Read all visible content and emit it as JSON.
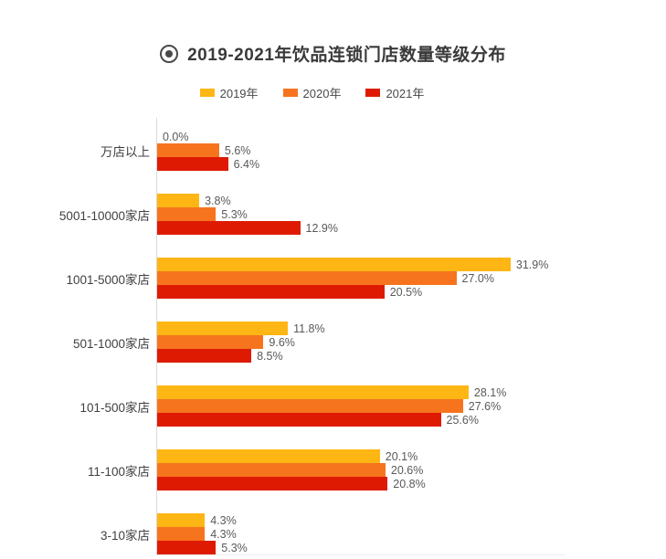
{
  "title": {
    "text": "2019-2021年饮品连锁门店数量等级分布"
  },
  "chart_data": {
    "type": "bar",
    "orientation": "horizontal",
    "title": "2019-2021年饮品连锁门店数量等级分布",
    "categories": [
      "万店以上",
      "5001-10000家店",
      "1001-5000家店",
      "501-1000家店",
      "101-500家店",
      "11-100家店",
      "3-10家店"
    ],
    "series": [
      {
        "name": "2019年",
        "color": "#FDB614",
        "values": [
          0.0,
          3.8,
          31.9,
          11.8,
          28.1,
          20.1,
          4.3
        ]
      },
      {
        "name": "2020年",
        "color": "#F7741E",
        "values": [
          5.6,
          5.3,
          27.0,
          9.6,
          27.6,
          20.6,
          4.3
        ]
      },
      {
        "name": "2021年",
        "color": "#DE1B02",
        "values": [
          6.4,
          12.9,
          20.5,
          8.5,
          25.6,
          20.8,
          5.3
        ]
      }
    ],
    "value_suffix": "%",
    "value_decimals": 1,
    "xlim": [
      0,
      36.9
    ],
    "grid": false,
    "legend_position": "top",
    "axis_line_color": "#d9d9d9"
  }
}
